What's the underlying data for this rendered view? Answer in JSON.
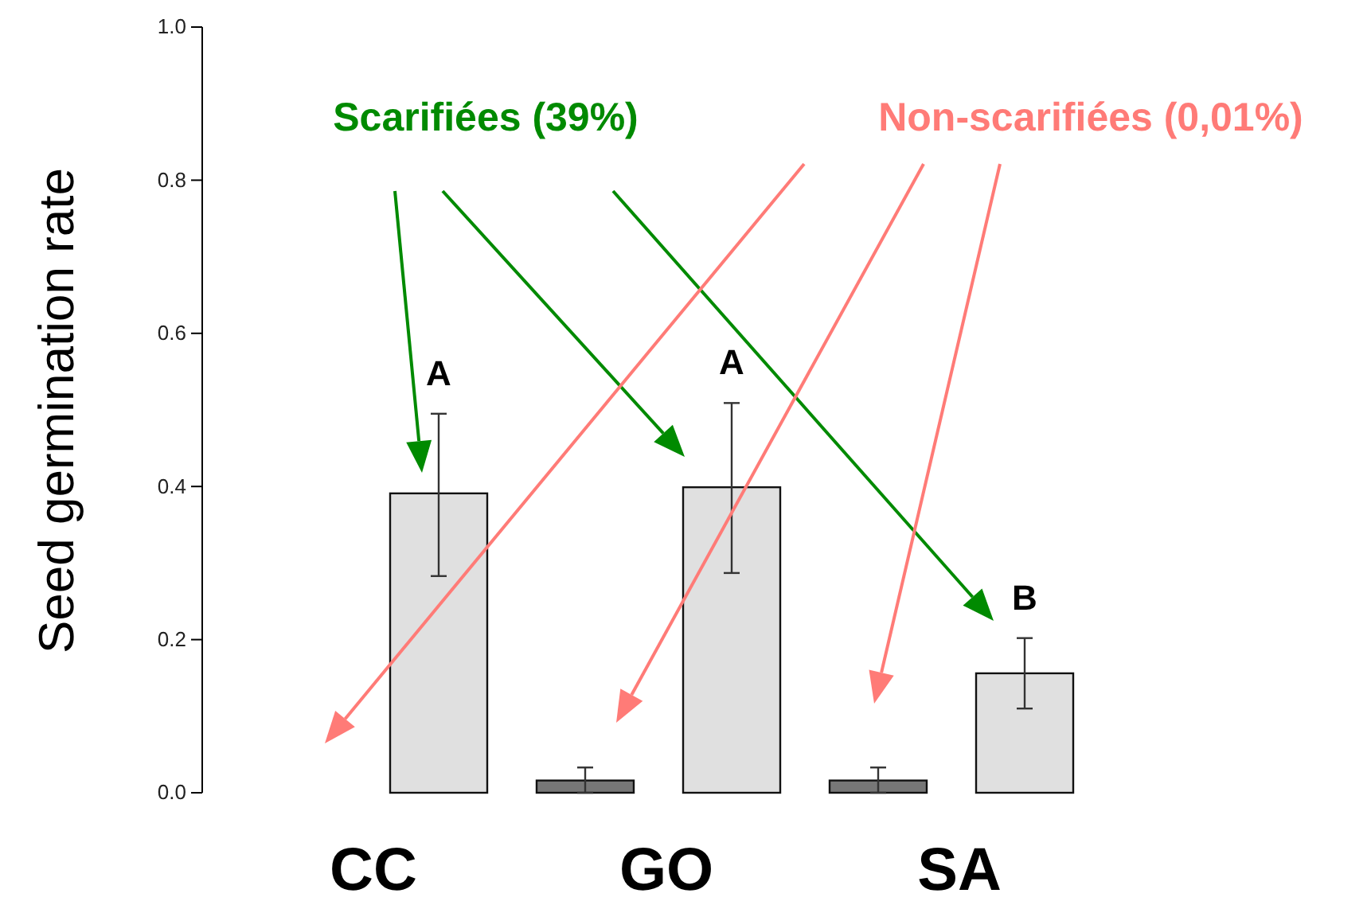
{
  "chart_data": {
    "type": "bar",
    "ylabel": "Seed germination rate",
    "categories": [
      "CC",
      "GO",
      "SA"
    ],
    "series": [
      {
        "color": "#777777",
        "values": [
          0,
          0.016,
          0.016
        ],
        "errors": [
          null,
          [
            0,
            0.033
          ],
          [
            0,
            0.033
          ]
        ]
      },
      {
        "color": "#e0e0e0",
        "values": [
          0.391,
          0.399,
          0.156
        ],
        "errors": [
          [
            0.283,
            0.495
          ],
          [
            0.287,
            0.509
          ],
          [
            0.11,
            0.202
          ]
        ]
      }
    ],
    "ylim": [
      0,
      1
    ],
    "yticks": [
      {
        "value": 0,
        "label": "0.0"
      },
      0.2,
      0.4,
      0.6,
      0.8,
      {
        "value": 1,
        "label": "1.0"
      }
    ],
    "grid": false,
    "annotations": [
      "Scarifiées (39%)",
      "Non-scarifiées (0,01%)",
      "A",
      "A",
      "B"
    ]
  }
}
